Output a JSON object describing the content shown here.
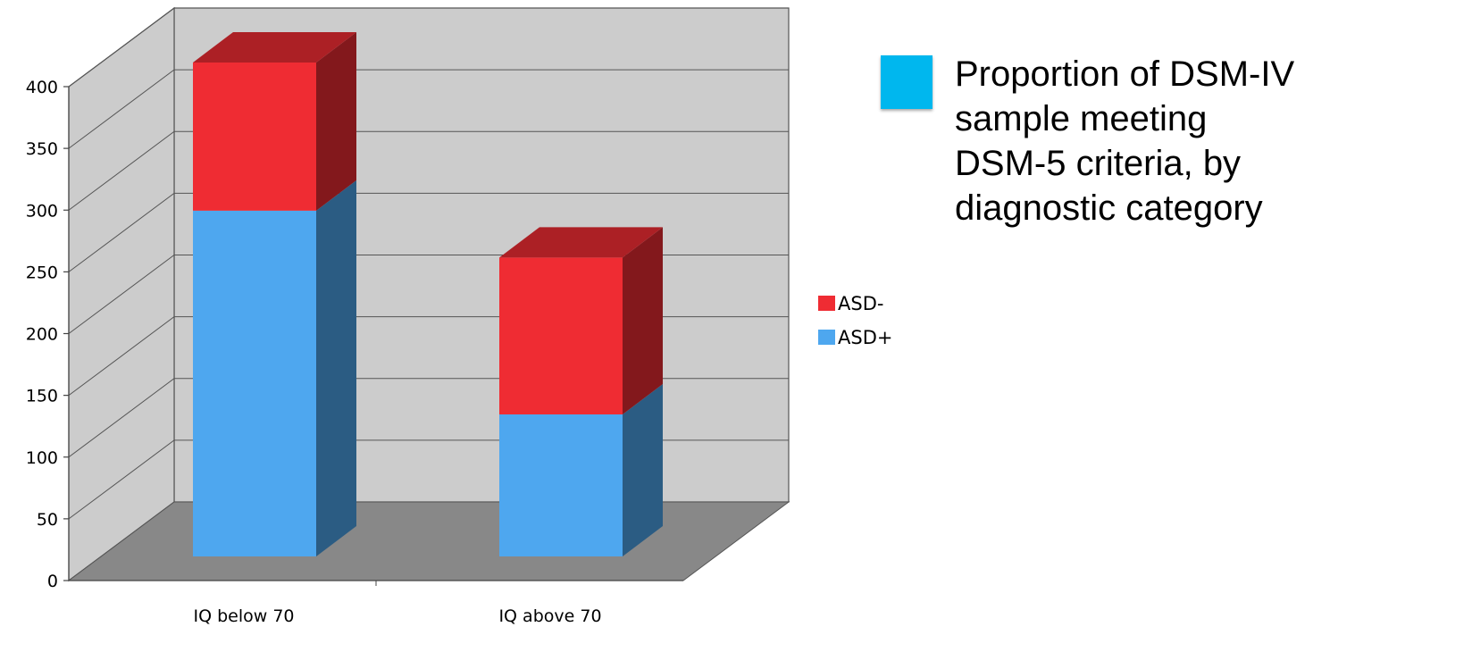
{
  "chart_data": {
    "type": "bar",
    "stacked": true,
    "three_d": true,
    "categories": [
      "IQ below 70",
      "IQ above 70"
    ],
    "series": [
      {
        "name": "ASD+",
        "values": [
          280,
          115
        ],
        "color": "#4ea7ef"
      },
      {
        "name": "ASD-",
        "values": [
          120,
          127
        ],
        "color": "#ef2c33"
      }
    ],
    "ylim": [
      0,
      400
    ],
    "yticks": [
      0,
      50,
      100,
      150,
      200,
      250,
      300,
      350,
      400
    ],
    "legend": {
      "position": "right",
      "order": [
        "ASD-",
        "ASD+"
      ]
    },
    "grid": true,
    "wall_color": "#cccccc",
    "floor_color": "#888888"
  },
  "caption": {
    "text": "Proportion of DSM-IV\nsample meeting\nDSM-5 criteria, by\ndiagnostic category",
    "swatch_color": "#00b7ee"
  }
}
